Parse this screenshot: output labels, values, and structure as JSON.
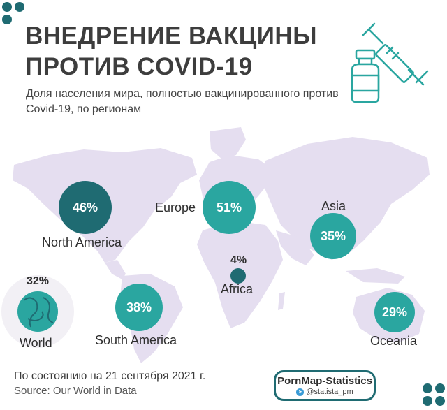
{
  "header": {
    "title_line1": "ВНЕДРЕНИЕ ВАКЦИНЫ",
    "title_line2": "ПРОТИВ COVID-19",
    "subtitle": "Доля населения мира, полностью вакцинированного против Covid-19, по регионам"
  },
  "regions": [
    {
      "key": "north_america",
      "name": "North America",
      "value": "46%",
      "share": 0.46
    },
    {
      "key": "europe",
      "name": "Europe",
      "value": "51%",
      "share": 0.51
    },
    {
      "key": "asia",
      "name": "Asia",
      "value": "35%",
      "share": 0.35
    },
    {
      "key": "africa",
      "name": "Africa",
      "value": "4%",
      "share": 0.04
    },
    {
      "key": "south_america",
      "name": "South America",
      "value": "38%",
      "share": 0.38
    },
    {
      "key": "oceania",
      "name": "Oceania",
      "value": "29%",
      "share": 0.29
    },
    {
      "key": "world",
      "name": "World",
      "value": "32%",
      "share": 0.32
    }
  ],
  "footer": {
    "date": "По состоянию на 21 сентября 2021 г.",
    "source": "Source: Our World in Data",
    "brand": "PornMap-Statistics",
    "handle": "@statista_pm"
  },
  "colors": {
    "dark_teal": "#1f6b72",
    "teal": "#2aa6a0",
    "map": "#e3dcef",
    "accent": "#1f6b72"
  },
  "icons": [
    "vaccine-syringe-icon",
    "vial-icon",
    "globe-icon",
    "telegram-icon"
  ]
}
